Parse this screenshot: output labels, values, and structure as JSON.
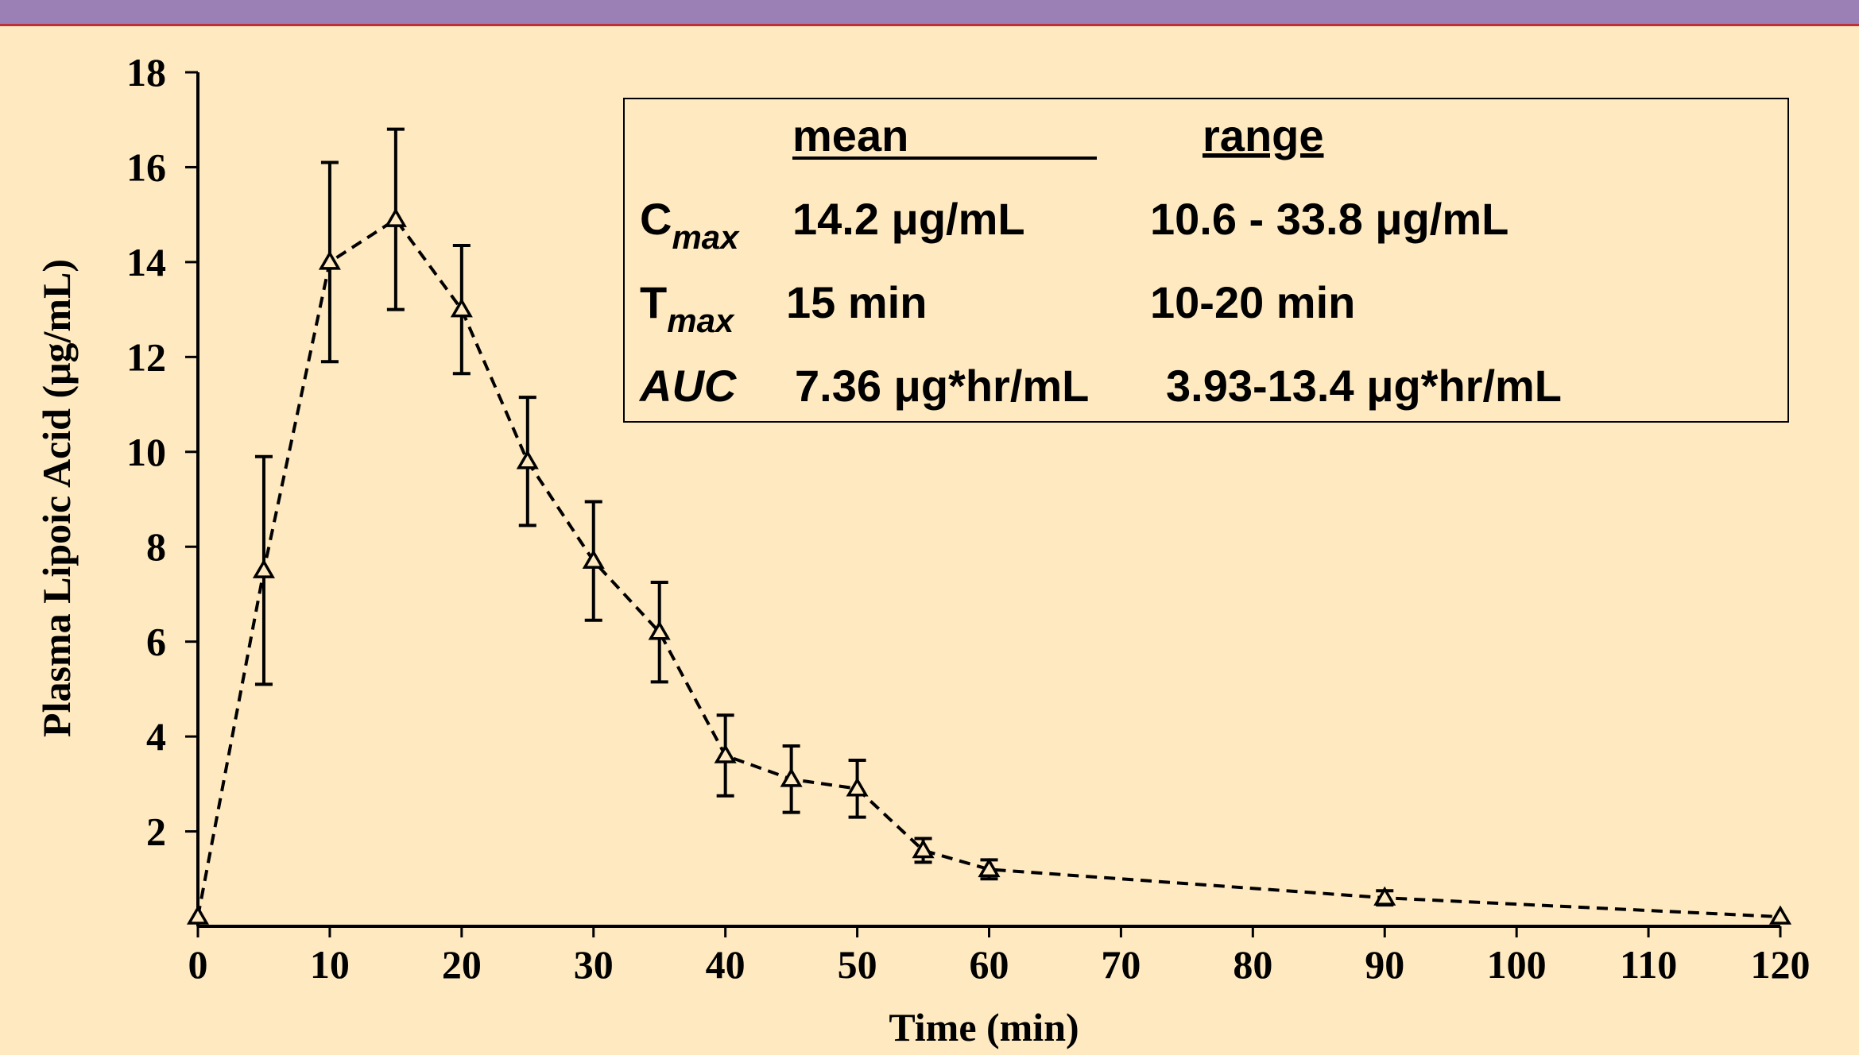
{
  "chart_data": {
    "type": "line",
    "x": [
      0,
      5,
      10,
      15,
      20,
      25,
      30,
      35,
      40,
      45,
      50,
      55,
      60,
      90,
      120
    ],
    "series": [
      {
        "color": "#000000",
        "values": [
          0.2,
          7.5,
          14.0,
          14.9,
          13.0,
          9.8,
          7.7,
          6.2,
          3.6,
          3.1,
          2.9,
          1.6,
          1.2,
          0.6,
          0.2
        ],
        "errors": [
          null,
          2.4,
          2.1,
          1.9,
          1.35,
          1.35,
          1.25,
          1.05,
          0.85,
          0.7,
          0.6,
          0.25,
          0.2,
          0.15,
          null
        ]
      }
    ],
    "xlim": [
      0,
      120
    ],
    "xticks": [
      0,
      10,
      20,
      30,
      40,
      50,
      60,
      70,
      80,
      90,
      100,
      110,
      120
    ],
    "ylim": [
      0,
      18
    ],
    "yticks": [
      2,
      4,
      6,
      8,
      10,
      12,
      14,
      16,
      18
    ],
    "x_label": "Time (min)",
    "y_label": "Plasma Lipoic Acid (μg/mL)",
    "annotation": {
      "headers": [
        "mean",
        "range"
      ],
      "rows": [
        {
          "label": "C",
          "sub": "max",
          "mean": "14.2 μg/mL",
          "range": "10.6 - 33.8 μg/mL"
        },
        {
          "label": "T",
          "sub": "max",
          "mean": "15 min",
          "range": "10-20 min"
        },
        {
          "label": "AUC",
          "mean": "7.36 μg*hr/mL",
          "range": "3.93-13.4 μg*hr/mL"
        }
      ]
    }
  }
}
